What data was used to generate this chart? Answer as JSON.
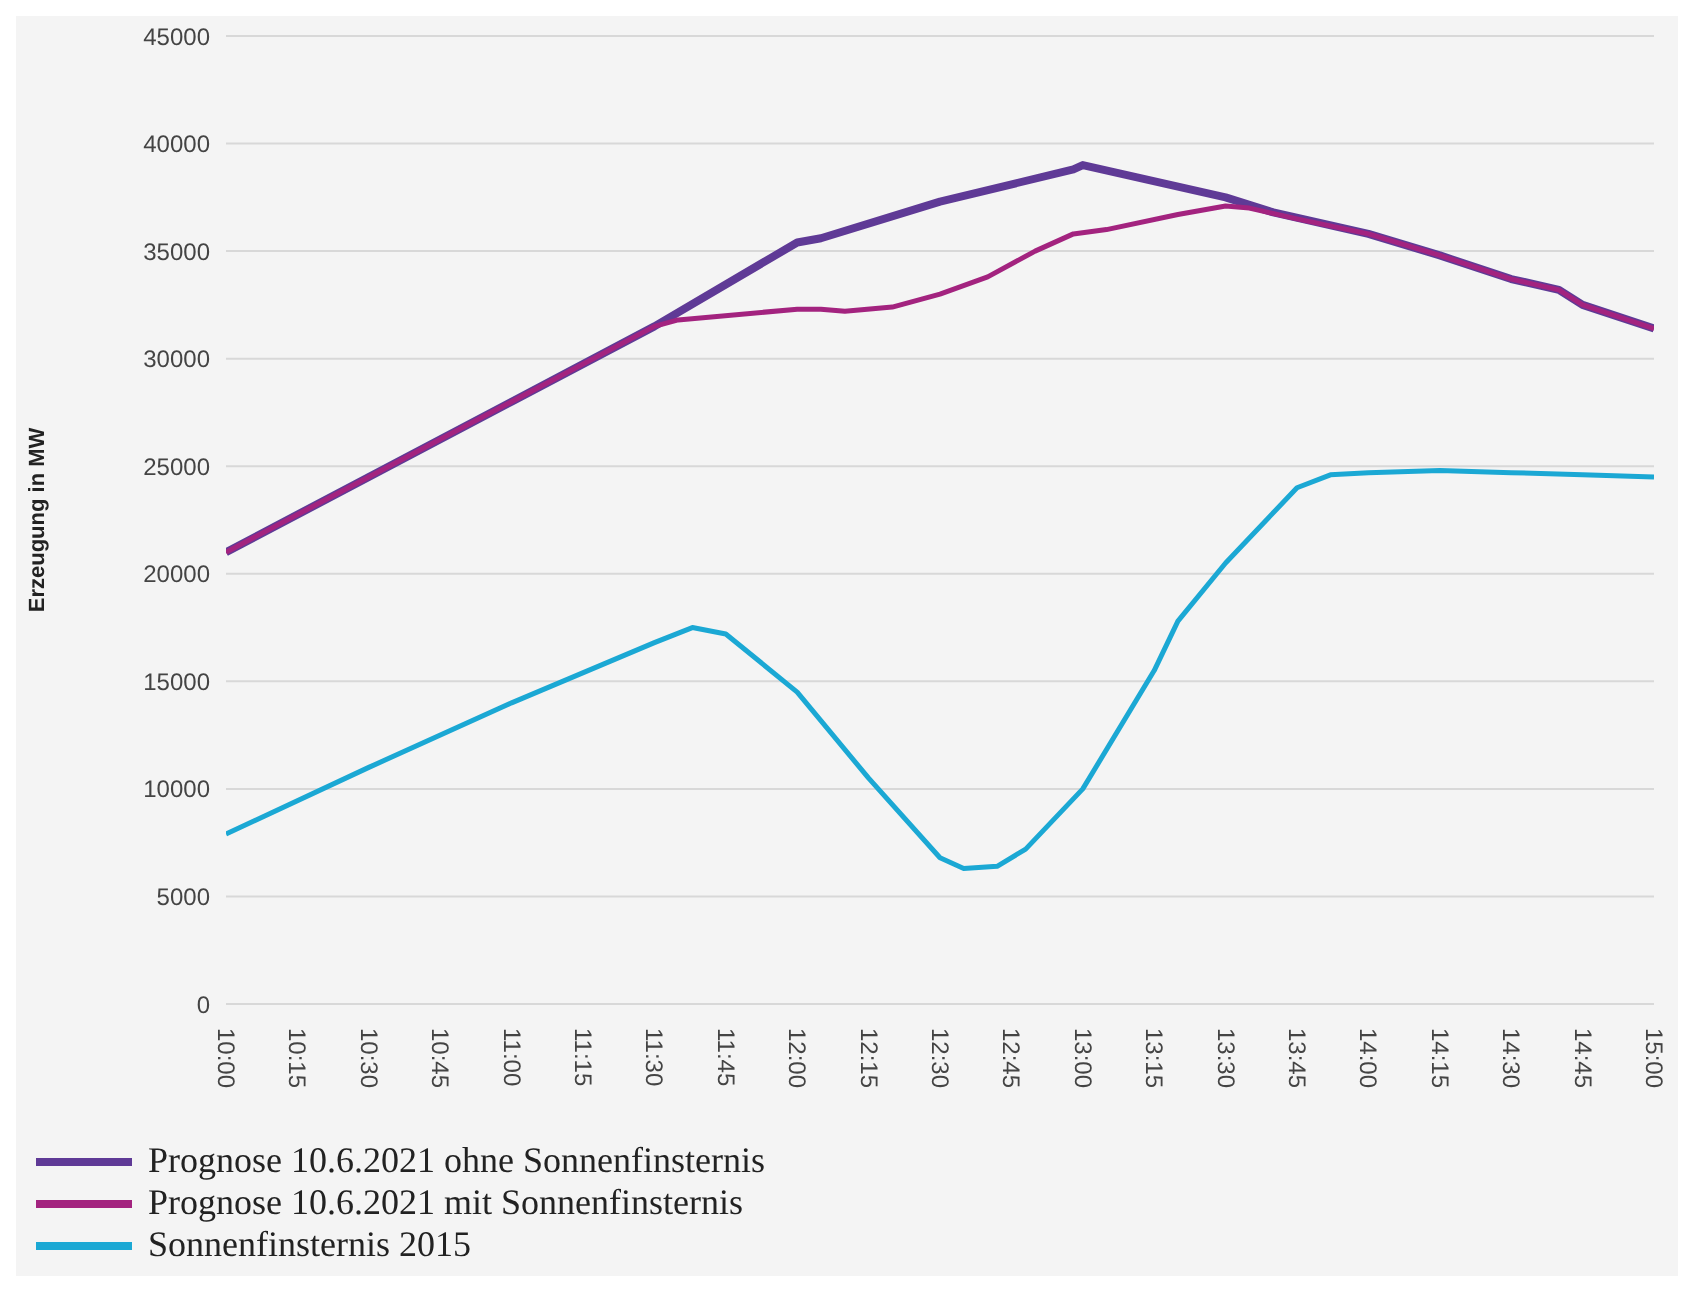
{
  "chart_data": {
    "type": "line",
    "ylabel": "Erzeugung in MW",
    "xlim": [
      10,
      15
    ],
    "xticks": [
      {
        "value": 10,
        "label": "10:00"
      },
      {
        "value": 10.25,
        "label": "10:15"
      },
      {
        "value": 10.5,
        "label": "10:30"
      },
      {
        "value": 10.75,
        "label": "10:45"
      },
      {
        "value": 11,
        "label": "11:00"
      },
      {
        "value": 11.25,
        "label": "11:15"
      },
      {
        "value": 11.5,
        "label": "11:30"
      },
      {
        "value": 11.75,
        "label": "11:45"
      },
      {
        "value": 12,
        "label": "12:00"
      },
      {
        "value": 12.25,
        "label": "12:15"
      },
      {
        "value": 12.5,
        "label": "12:30"
      },
      {
        "value": 12.75,
        "label": "12:45"
      },
      {
        "value": 13,
        "label": "13:00"
      },
      {
        "value": 13.25,
        "label": "13:15"
      },
      {
        "value": 13.5,
        "label": "13:30"
      },
      {
        "value": 13.75,
        "label": "13:45"
      },
      {
        "value": 14,
        "label": "14:00"
      },
      {
        "value": 14.25,
        "label": "14:15"
      },
      {
        "value": 14.5,
        "label": "14:30"
      },
      {
        "value": 14.75,
        "label": "14:45"
      },
      {
        "value": 15,
        "label": "15:00"
      }
    ],
    "ylim": [
      0,
      45000
    ],
    "yticks": [
      0,
      5000,
      10000,
      15000,
      20000,
      25000,
      30000,
      35000,
      40000,
      45000
    ],
    "grid": "y",
    "legend": "bottom left",
    "marker": "none",
    "line_style": "solid",
    "series": [
      {
        "name": "Prognose 10.6.2021 ohne Sonnenfinsternis",
        "color": "#5f3a96",
        "x": [
          10,
          10.5,
          11,
          11.5,
          12,
          12.083,
          12.5,
          12.967,
          13,
          13.5,
          13.667,
          14,
          14.25,
          14.5,
          14.667,
          14.75,
          15
        ],
        "values": [
          21000,
          24500,
          28000,
          31500,
          35400,
          35600,
          37300,
          38800,
          39000,
          37500,
          36800,
          35800,
          34800,
          33700,
          33200,
          32500,
          31400
        ]
      },
      {
        "name": "Prognose 10.6.2021 mit Sonnenfinsternis",
        "color": "#a3237f",
        "x": [
          10,
          10.5,
          11,
          11.5,
          11.583,
          12,
          12.083,
          12.167,
          12.333,
          12.5,
          12.667,
          12.833,
          12.967,
          13.083,
          13.333,
          13.5,
          13.583,
          13.75,
          14,
          14.25,
          14.5,
          14.667,
          14.75,
          15
        ],
        "values": [
          21000,
          24500,
          28000,
          31500,
          31800,
          32300,
          32300,
          32200,
          32400,
          33000,
          33800,
          35000,
          35800,
          36000,
          36700,
          37100,
          37000,
          36500,
          35800,
          34800,
          33700,
          33200,
          32500,
          31400
        ]
      },
      {
        "name": "Sonnenfinsternis 2015",
        "color": "#1ba8d4",
        "x": [
          10,
          10.5,
          11,
          11.5,
          11.633,
          11.75,
          12,
          12.25,
          12.5,
          12.583,
          12.7,
          12.8,
          13,
          13.25,
          13.333,
          13.5,
          13.75,
          13.867,
          14,
          14.25,
          14.5,
          14.75,
          15
        ],
        "values": [
          7900,
          11000,
          14000,
          16800,
          17500,
          17200,
          14500,
          10500,
          6800,
          6300,
          6400,
          7200,
          10000,
          15500,
          17800,
          20500,
          24000,
          24600,
          24700,
          24800,
          24700,
          24600,
          24500
        ]
      }
    ]
  }
}
